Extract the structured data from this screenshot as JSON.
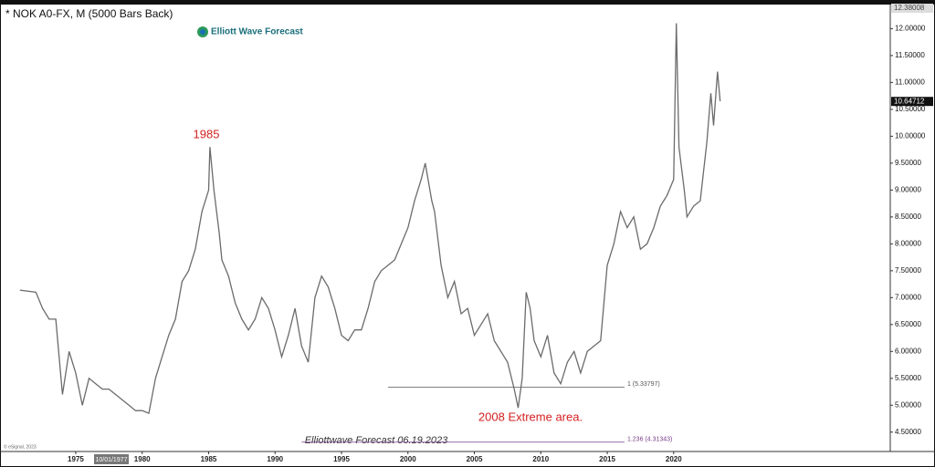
{
  "chart_data": {
    "type": "line",
    "title": "* NOK A0-FX, M (5000 Bars Back)",
    "brand": "Elliott Wave Forecast",
    "watermark": "Elliottwave Forecast  06.19.2023",
    "copyright": "© eSignal, 2023",
    "cursor_date": "10/01/1977",
    "annotations": [
      "1985",
      "2008 Extreme area."
    ],
    "levels": [
      {
        "text": "1 (5.33797)",
        "value": 5.33797,
        "x_start": 1998.5,
        "x_end": 2016.3,
        "color": "#555555"
      },
      {
        "text": "1.236 (4.31343)",
        "value": 4.31343,
        "x_start": 1992,
        "x_end": 2016.3,
        "color": "#7a3f8a"
      }
    ],
    "price_tags": [
      12.38008,
      10.64712
    ],
    "color": "#6b6b6b",
    "xlim": [
      1969.3,
      2036.3
    ],
    "ylim": [
      4.14,
      12.38
    ],
    "xticks": [
      1975,
      1980,
      1985,
      1990,
      1995,
      2000,
      2005,
      2010,
      2015,
      2020
    ],
    "yticks": [
      {
        "value": 4.5,
        "label": "4.50000"
      },
      {
        "value": 5,
        "label": "5.00000"
      },
      {
        "value": 5.5,
        "label": "5.50000"
      },
      {
        "value": 6,
        "label": "6.00000"
      },
      {
        "value": 6.5,
        "label": "6.50000"
      },
      {
        "value": 7,
        "label": "7.00000"
      },
      {
        "value": 7.5,
        "label": "7.50000"
      },
      {
        "value": 8,
        "label": "8.00000"
      },
      {
        "value": 8.5,
        "label": "8.50000"
      },
      {
        "value": 9,
        "label": "9.00000"
      },
      {
        "value": 9.5,
        "label": "9.50000"
      },
      {
        "value": 10,
        "label": "10.00000"
      },
      {
        "value": 10.5,
        "label": "10.50000"
      },
      {
        "value": 11,
        "label": "11.00000"
      },
      {
        "value": 11.5,
        "label": "11.50000"
      },
      {
        "value": 12,
        "label": "12.00000"
      }
    ],
    "x": [
      1970.8,
      1972,
      1972.5,
      1973,
      1973.5,
      1974,
      1974.5,
      1975,
      1975.5,
      1976,
      1976.5,
      1977,
      1977.5,
      1978,
      1978.5,
      1979,
      1979.5,
      1980,
      1980.5,
      1981,
      1981.5,
      1982,
      1982.5,
      1983,
      1983.5,
      1984,
      1984.5,
      1985,
      1985.1,
      1985.4,
      1985.8,
      1986,
      1986.5,
      1987,
      1987.5,
      1988,
      1988.5,
      1989,
      1989.5,
      1990,
      1990.5,
      1991,
      1991.5,
      1992,
      1992.5,
      1993,
      1993.5,
      1994,
      1994.5,
      1995,
      1995.5,
      1996,
      1996.5,
      1997,
      1997.5,
      1998,
      1998.5,
      1999,
      1999.5,
      2000,
      2000.5,
      2001,
      2001.3,
      2001.8,
      2002,
      2002.5,
      2003,
      2003.5,
      2004,
      2004.5,
      2005,
      2005.5,
      2006,
      2006.5,
      2007,
      2007.5,
      2008,
      2008.3,
      2008.6,
      2008.9,
      2009.2,
      2009.5,
      2010,
      2010.5,
      2011,
      2011.5,
      2012,
      2012.5,
      2013,
      2013.5,
      2014,
      2014.5,
      2015,
      2015.5,
      2016,
      2016.5,
      2017,
      2017.5,
      2018,
      2018.5,
      2019,
      2019.5,
      2020,
      2020.2,
      2020.4,
      2020.8,
      2021,
      2021.5,
      2022,
      2022.5,
      2022.8,
      2023,
      2023.3,
      2023.5
    ],
    "values": [
      7.14,
      7.1,
      6.8,
      6.6,
      6.6,
      5.2,
      6.0,
      5.6,
      5.0,
      5.5,
      5.4,
      5.3,
      5.3,
      5.2,
      5.1,
      5.0,
      4.9,
      4.9,
      4.85,
      5.5,
      5.9,
      6.3,
      6.6,
      7.3,
      7.5,
      7.9,
      8.6,
      9.0,
      9.8,
      9.0,
      8.2,
      7.7,
      7.4,
      6.9,
      6.6,
      6.4,
      6.6,
      7.0,
      6.8,
      6.4,
      5.9,
      6.3,
      6.8,
      6.1,
      5.8,
      7.0,
      7.4,
      7.2,
      6.8,
      6.3,
      6.2,
      6.4,
      6.4,
      6.8,
      7.3,
      7.5,
      7.6,
      7.7,
      8.0,
      8.3,
      8.8,
      9.2,
      9.5,
      8.8,
      8.6,
      7.6,
      7.0,
      7.3,
      6.7,
      6.8,
      6.3,
      6.5,
      6.7,
      6.2,
      6.0,
      5.8,
      5.3,
      4.95,
      5.5,
      7.1,
      6.8,
      6.2,
      5.9,
      6.3,
      5.6,
      5.4,
      5.8,
      6.0,
      5.6,
      6.0,
      6.1,
      6.2,
      7.6,
      8.0,
      8.6,
      8.3,
      8.5,
      7.9,
      8.0,
      8.3,
      8.7,
      8.9,
      9.2,
      12.1,
      9.8,
      9.0,
      8.5,
      8.7,
      8.8,
      9.9,
      10.8,
      10.2,
      11.2,
      10.65
    ]
  }
}
